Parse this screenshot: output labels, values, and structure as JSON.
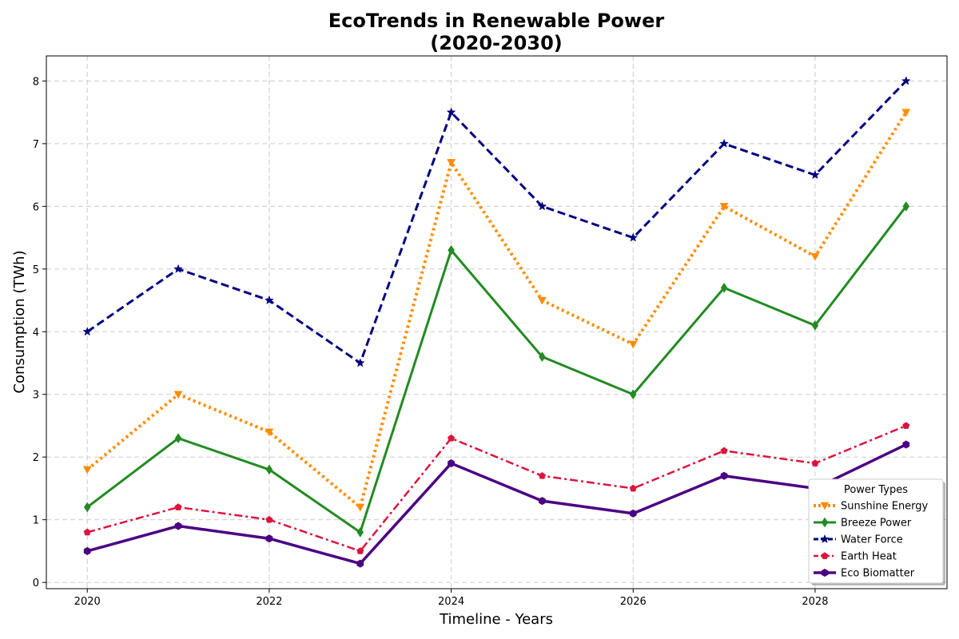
{
  "chart_data": {
    "type": "line",
    "title_line1": "EcoTrends in Renewable Power",
    "title_line2": "(2020-2030)",
    "xlabel": "Timeline - Years",
    "ylabel": "Consumption (TWh)",
    "x": [
      2020,
      2021,
      2022,
      2023,
      2024,
      2025,
      2026,
      2027,
      2028,
      2029
    ],
    "xticks": [
      2020,
      2022,
      2024,
      2026,
      2028
    ],
    "yticks": [
      0,
      1,
      2,
      3,
      4,
      5,
      6,
      7,
      8
    ],
    "xlim": [
      2019.55,
      2029.45
    ],
    "ylim": [
      -0.1,
      8.4
    ],
    "grid": true,
    "legend": {
      "title": "Power Types",
      "placement": "lower right"
    },
    "series": [
      {
        "name": "Sunshine Energy",
        "color": "#ff8c00",
        "dash": "dotted",
        "marker": "triangle-down",
        "width": 4,
        "values": [
          1.8,
          3.0,
          2.4,
          1.2,
          6.7,
          4.5,
          3.8,
          6.0,
          5.2,
          7.5
        ]
      },
      {
        "name": "Breeze Power",
        "color": "#228b22",
        "dash": "solid",
        "marker": "diamond",
        "width": 3,
        "values": [
          1.2,
          2.3,
          1.8,
          0.8,
          5.3,
          3.6,
          3.0,
          4.7,
          4.1,
          6.0
        ]
      },
      {
        "name": "Water Force",
        "color": "#000080",
        "dash": "dashed",
        "marker": "star",
        "width": 3,
        "values": [
          4.0,
          5.0,
          4.5,
          3.5,
          7.5,
          6.0,
          5.5,
          7.0,
          6.5,
          8.0
        ]
      },
      {
        "name": "Earth Heat",
        "color": "#dc143c",
        "dash": "dashdot",
        "marker": "pentagon",
        "width": 2.5,
        "values": [
          0.8,
          1.2,
          1.0,
          0.5,
          2.3,
          1.7,
          1.5,
          2.1,
          1.9,
          2.5
        ]
      },
      {
        "name": "Eco Biomatter",
        "color": "#4b0082",
        "dash": "solid",
        "marker": "hexagon",
        "width": 3.5,
        "values": [
          0.5,
          0.9,
          0.7,
          0.3,
          1.9,
          1.3,
          1.1,
          1.7,
          1.5,
          2.2
        ]
      }
    ]
  }
}
